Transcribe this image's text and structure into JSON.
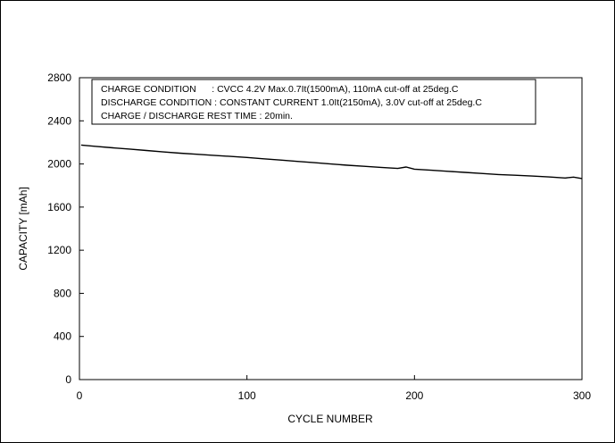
{
  "chart_data": {
    "type": "line",
    "xlabel": "CYCLE NUMBER",
    "ylabel": "CAPACITY  [mAh]",
    "xlim": [
      0,
      300
    ],
    "ylim": [
      0,
      2800
    ],
    "xticks": [
      0,
      100,
      200,
      300
    ],
    "yticks": [
      0,
      400,
      800,
      1200,
      1600,
      2000,
      2400,
      2800
    ],
    "grid": false,
    "legend": "none",
    "annotations": [
      "CHARGE CONDITION      : CVCC 4.2V Max.0.7It(1500mA), 110mA cut-off at 25deg.C",
      "DISCHARGE CONDITION : CONSTANT CURRENT 1.0It(2150mA), 3.0V cut-off at 25deg.C",
      "CHARGE / DISCHARGE REST TIME : 20min."
    ],
    "series": [
      {
        "color": "#000000",
        "x": [
          1,
          10,
          20,
          30,
          40,
          50,
          60,
          70,
          80,
          90,
          100,
          110,
          120,
          130,
          140,
          150,
          160,
          170,
          180,
          190,
          195,
          200,
          210,
          220,
          230,
          240,
          250,
          260,
          270,
          280,
          290,
          295,
          300
        ],
        "y": [
          2175,
          2163,
          2150,
          2138,
          2125,
          2112,
          2100,
          2090,
          2080,
          2070,
          2060,
          2048,
          2036,
          2024,
          2012,
          2000,
          1988,
          1978,
          1968,
          1958,
          1972,
          1952,
          1942,
          1932,
          1922,
          1912,
          1902,
          1895,
          1888,
          1880,
          1870,
          1878,
          1865
        ]
      }
    ]
  }
}
